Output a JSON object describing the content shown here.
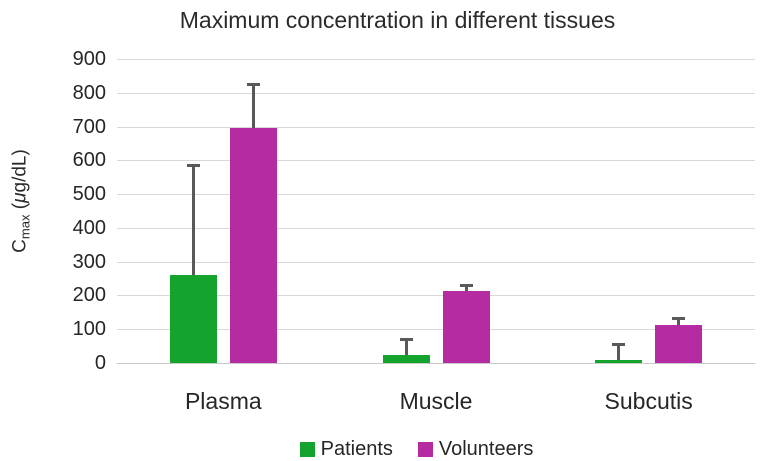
{
  "chart_data": {
    "type": "bar",
    "title": "Maximum concentration in different tissues",
    "ylabel": {
      "main": "C",
      "sub": "max",
      "unit_pre": " (",
      "unit_mu": "μ",
      "unit_post": "g/dL)"
    },
    "categories": [
      "Plasma",
      "Muscle",
      "Subcutis"
    ],
    "series": [
      {
        "name": "Patients",
        "color": "#14A32C",
        "values": [
          260,
          25,
          10
        ],
        "error_plus": [
          330,
          48,
          50
        ]
      },
      {
        "name": "Volunteers",
        "color": "#B52BA2",
        "values": [
          695,
          212,
          113
        ],
        "error_plus": [
          135,
          21,
          22
        ]
      }
    ],
    "ylim": [
      0,
      900
    ],
    "ytick_step": 100,
    "grid": true,
    "legend_position": "bottom",
    "colors": {
      "gridline": "#d9d9d9",
      "axis_line": "#c9c9c9",
      "error_bar": "#595959",
      "text": "#262626"
    }
  }
}
